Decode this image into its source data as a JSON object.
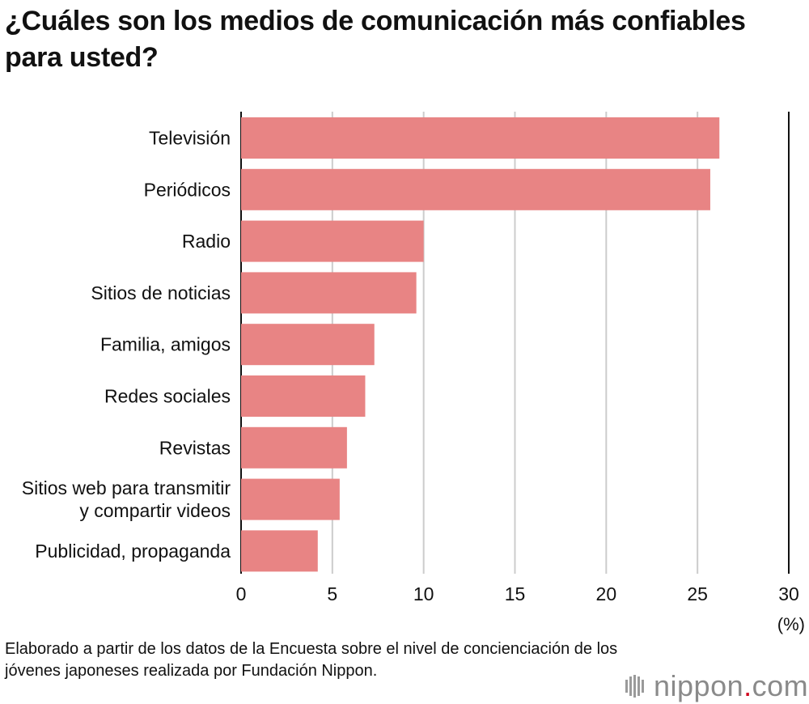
{
  "chart_data": {
    "type": "bar",
    "orientation": "horizontal",
    "title": "¿Cuáles son los medios de comunicación más confiables para usted?",
    "categories": [
      "Televisión",
      "Periódicos",
      "Radio",
      "Sitios de noticias",
      "Familia, amigos",
      "Redes sociales",
      "Revistas",
      "Sitios web para transmitir y compartir videos",
      "Publicidad, propaganda"
    ],
    "category_lines": [
      [
        "Televisión"
      ],
      [
        "Periódicos"
      ],
      [
        "Radio"
      ],
      [
        "Sitios de noticias"
      ],
      [
        "Familia, amigos"
      ],
      [
        "Redes sociales"
      ],
      [
        "Revistas"
      ],
      [
        "Sitios web para transmitir",
        "y compartir videos"
      ],
      [
        "Publicidad, propaganda"
      ]
    ],
    "values": [
      26.2,
      25.7,
      10.0,
      9.6,
      7.3,
      6.8,
      5.8,
      5.4,
      4.2
    ],
    "xlim": [
      0,
      30
    ],
    "xticks": [
      0,
      5,
      10,
      15,
      20,
      25,
      30
    ],
    "unit": "(%)",
    "grid": true,
    "colors": {
      "bar": "#e88484",
      "grid": "#cccccc",
      "axis": "#111111"
    }
  },
  "footer": {
    "source": "Elaborado a partir de los datos de la Encuesta sobre el nivel de concienciación de los jóvenes japoneses realizada por Fundación Nippon.",
    "brand_name": "nippon",
    "brand_dot": ".",
    "brand_tld": "com",
    "brand_icon": "nippon-logo-icon"
  }
}
